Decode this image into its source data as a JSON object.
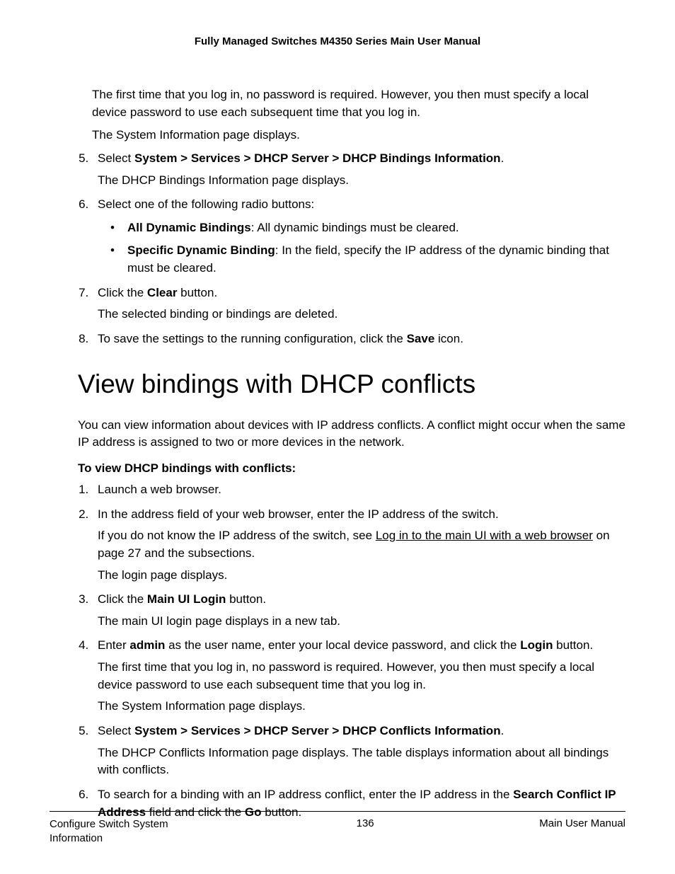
{
  "docHeader": "Fully Managed Switches M4350 Series Main User Manual",
  "topPara1": "The first time that you log in, no password is required. However, you then must specify a local device password to use each subsequent time that you log in.",
  "topPara2": "The System Information page displays.",
  "step5_pre": "Select ",
  "step5_bold": "System > Services > DHCP Server > DHCP Bindings Information",
  "step5_post": ".",
  "step5_sub": "The DHCP Bindings Information page displays.",
  "step6": "Select one of the following radio buttons:",
  "bullet1_bold": "All Dynamic Bindings",
  "bullet1_rest": ": All dynamic bindings must be cleared.",
  "bullet2_bold": "Specific Dynamic Binding",
  "bullet2_rest": ": In the field, specify the IP address of the dynamic binding that must be cleared.",
  "step7_pre": "Click the ",
  "step7_bold": "Clear",
  "step7_post": " button.",
  "step7_sub": "The selected binding or bindings are deleted.",
  "step8_pre": "To save the settings to the running configuration, click the ",
  "step8_bold": "Save",
  "step8_post": " icon.",
  "sectionTitle": "View bindings with DHCP conflicts",
  "introPara": "You can view information about devices with IP address conflicts. A conflict might occur when the same IP address is assigned to two or more devices in the network.",
  "procTitle": "To view DHCP bindings with conflicts:",
  "p1": "Launch a web browser.",
  "p2": "In the address field of your web browser, enter the IP address of the switch.",
  "p2sub_pre": "If you do not know the IP address of the switch, see ",
  "p2sub_link": "Log in to the main UI with a web browser",
  "p2sub_post": " on page 27 and the subsections.",
  "p2sub2": "The login page displays.",
  "p3_pre": "Click the ",
  "p3_bold": "Main UI Login",
  "p3_post": " button.",
  "p3sub": "The main UI login page displays in a new tab.",
  "p4_pre": "Enter ",
  "p4_bold1": "admin",
  "p4_mid": " as the user name, enter your local device password, and click the ",
  "p4_bold2": "Login",
  "p4_post": " button.",
  "p4sub1": "The first time that you log in, no password is required. However, you then must specify a local device password to use each subsequent time that you log in.",
  "p4sub2": "The System Information page displays.",
  "p5_pre": "Select ",
  "p5_bold": "System > Services > DHCP Server > DHCP Conflicts Information",
  "p5_post": ".",
  "p5sub": "The DHCP Conflicts Information page displays. The table displays information about all bindings with conflicts.",
  "p6_pre": "To search for a binding with an IP address conflict, enter the IP address in the ",
  "p6_bold1": "Search Conflict IP Address",
  "p6_mid": " field and click the ",
  "p6_bold2": "Go",
  "p6_post": " button.",
  "footerLeft": "Configure Switch System Information",
  "footerCenter": "136",
  "footerRight": "Main User Manual"
}
